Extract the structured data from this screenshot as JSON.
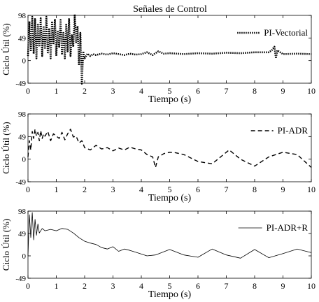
{
  "title": "Señales de Control",
  "chart_data": [
    {
      "type": "line",
      "title": "Señales de Control",
      "xlabel": "Tiempo (s)",
      "ylabel": "Ciclo Útil (%)",
      "xlim": [
        0,
        10
      ],
      "ylim": [
        -49,
        98
      ],
      "xticks": [
        "0",
        "1",
        "2",
        "3",
        "4",
        "5",
        "6",
        "7",
        "8",
        "9",
        "10"
      ],
      "yticks": [
        "98",
        "49",
        "0",
        "-49"
      ],
      "legend": "top-right",
      "grid": false,
      "series": [
        {
          "name": "PI-Vectorial",
          "style": "dotted",
          "x": [
            0,
            0.05,
            0.1,
            0.15,
            0.2,
            0.25,
            0.3,
            0.35,
            0.4,
            0.45,
            0.5,
            0.55,
            0.6,
            0.65,
            0.7,
            0.75,
            0.8,
            0.85,
            0.9,
            0.95,
            1.0,
            1.05,
            1.1,
            1.15,
            1.2,
            1.25,
            1.3,
            1.35,
            1.4,
            1.45,
            1.5,
            1.55,
            1.6,
            1.65,
            1.7,
            1.75,
            1.8,
            1.85,
            1.9,
            1.95,
            2.0,
            2.1,
            2.2,
            2.3,
            2.4,
            2.6,
            2.8,
            3.0,
            3.2,
            3.4,
            3.6,
            3.8,
            4.0,
            4.2,
            4.4,
            4.6,
            4.8,
            5.0,
            5.5,
            6.0,
            6.5,
            7.0,
            7.5,
            8.0,
            8.5,
            8.6,
            8.7,
            8.75,
            8.8,
            9.0,
            9.5,
            10.0
          ],
          "y": [
            10,
            85,
            20,
            95,
            15,
            90,
            5,
            80,
            30,
            92,
            10,
            75,
            25,
            95,
            15,
            70,
            5,
            85,
            35,
            90,
            10,
            65,
            30,
            88,
            15,
            60,
            5,
            80,
            20,
            90,
            10,
            55,
            30,
            100,
            40,
            75,
            -10,
            60,
            -50,
            20,
            5,
            15,
            10,
            14,
            12,
            15,
            13,
            16,
            14,
            12,
            15,
            13,
            14,
            18,
            12,
            20,
            15,
            16,
            14,
            16,
            15,
            17,
            16,
            18,
            18,
            22,
            30,
            5,
            22,
            14,
            15,
            14
          ]
        },
        {
          "name": "PI-ADR",
          "style": "dashed",
          "x": [
            0,
            0.05,
            0.1,
            0.15,
            0.2,
            0.25,
            0.3,
            0.35,
            0.4,
            0.45,
            0.5,
            0.55,
            0.6,
            0.7,
            0.8,
            0.9,
            1.0,
            1.1,
            1.2,
            1.3,
            1.4,
            1.5,
            1.6,
            1.7,
            1.8,
            1.9,
            2.0,
            2.2,
            2.4,
            2.6,
            2.8,
            3.0,
            3.2,
            3.4,
            3.6,
            3.8,
            4.0,
            4.2,
            4.4,
            4.5,
            4.6,
            4.8,
            5.0,
            5.2,
            5.5,
            6.0,
            6.5,
            7.0,
            7.1,
            7.5,
            8.0,
            8.5,
            9.0,
            9.5,
            10.0
          ],
          "y": [
            5,
            40,
            20,
            60,
            45,
            65,
            50,
            58,
            40,
            62,
            45,
            55,
            50,
            60,
            40,
            55,
            50,
            45,
            58,
            42,
            55,
            65,
            48,
            50,
            35,
            40,
            25,
            20,
            30,
            22,
            25,
            18,
            24,
            20,
            26,
            22,
            20,
            10,
            5,
            -18,
            5,
            12,
            15,
            14,
            10,
            -5,
            -10,
            15,
            20,
            0,
            -15,
            5,
            15,
            10,
            -18
          ]
        },
        {
          "name": "PI-ADR+R",
          "style": "solid",
          "x": [
            0,
            0.05,
            0.1,
            0.15,
            0.2,
            0.25,
            0.3,
            0.35,
            0.4,
            0.5,
            0.6,
            0.8,
            1.0,
            1.2,
            1.4,
            1.6,
            1.8,
            2.0,
            2.2,
            2.4,
            2.6,
            2.8,
            3.0,
            3.2,
            3.4,
            3.6,
            3.8,
            4.0,
            4.2,
            4.5,
            5.0,
            5.5,
            6.0,
            6.5,
            7.0,
            7.5,
            8.0,
            8.5,
            9.0,
            9.5,
            10.0
          ],
          "y": [
            0,
            90,
            40,
            95,
            35,
            80,
            45,
            70,
            50,
            60,
            55,
            58,
            55,
            60,
            58,
            50,
            40,
            32,
            28,
            25,
            18,
            15,
            20,
            10,
            15,
            12,
            8,
            4,
            0,
            2,
            14,
            2,
            -3,
            15,
            2,
            -5,
            14,
            -4,
            5,
            15,
            7
          ]
        }
      ]
    }
  ]
}
